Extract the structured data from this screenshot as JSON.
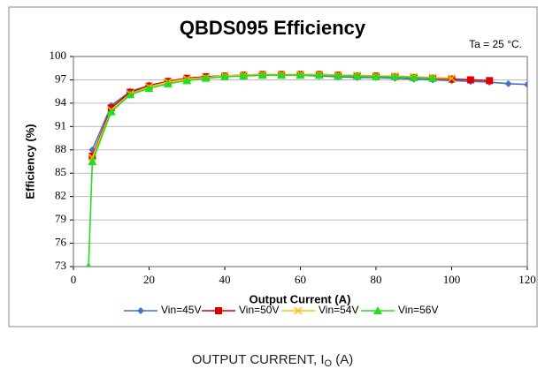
{
  "chart_data": {
    "type": "line",
    "title": "QBDS095 Efficiency",
    "annotation": "Ta = 25 °C.",
    "xlabel": "Output Current (A)",
    "ylabel": "Efficiency (%)",
    "caption": {
      "text": "OUTPUT CURRENT, I",
      "sub": "O",
      "suffix": " (A)"
    },
    "xlim": [
      0,
      120
    ],
    "xticks": [
      0,
      20,
      40,
      60,
      80,
      100,
      120
    ],
    "ylim": [
      73,
      100
    ],
    "yticks": [
      73,
      76,
      79,
      82,
      85,
      88,
      91,
      94,
      97,
      100
    ],
    "grid": true,
    "legend": "bottom",
    "series": [
      {
        "name": "Vin=45V",
        "color": "#4472c4",
        "marker": "diamond",
        "x": [
          5,
          10,
          15,
          20,
          25,
          30,
          35,
          40,
          45,
          50,
          55,
          60,
          65,
          70,
          75,
          80,
          85,
          90,
          95,
          100,
          105,
          110,
          115,
          120
        ],
        "values": [
          88,
          93.7,
          95.5,
          96.3,
          96.8,
          97.2,
          97.4,
          97.5,
          97.6,
          97.6,
          97.6,
          97.6,
          97.5,
          97.4,
          97.3,
          97.3,
          97.2,
          97.1,
          97.0,
          96.9,
          96.8,
          96.7,
          96.5,
          96.4
        ]
      },
      {
        "name": "Vin=50V",
        "color": "#e00000",
        "marker": "square",
        "x": [
          5,
          10,
          15,
          20,
          25,
          30,
          35,
          40,
          45,
          50,
          55,
          60,
          65,
          70,
          75,
          80,
          85,
          90,
          95,
          100,
          105,
          110
        ],
        "values": [
          87.2,
          93.4,
          95.4,
          96.2,
          96.8,
          97.2,
          97.4,
          97.5,
          97.6,
          97.7,
          97.7,
          97.7,
          97.7,
          97.6,
          97.5,
          97.5,
          97.4,
          97.3,
          97.2,
          97.1,
          97.0,
          96.9
        ]
      },
      {
        "name": "Vin=54V",
        "color": "#ffc000",
        "marker": "x",
        "x": [
          5,
          10,
          15,
          20,
          25,
          30,
          35,
          40,
          45,
          50,
          55,
          60,
          65,
          70,
          75,
          80,
          85,
          90,
          95,
          100
        ],
        "values": [
          87,
          93.1,
          95.2,
          96.1,
          96.7,
          97.1,
          97.3,
          97.5,
          97.6,
          97.7,
          97.7,
          97.7,
          97.7,
          97.6,
          97.6,
          97.5,
          97.5,
          97.4,
          97.3,
          97.2
        ]
      },
      {
        "name": "Vin=56V",
        "color": "#22dd22",
        "marker": "triangle",
        "x": [
          4,
          5,
          10,
          15,
          20,
          25,
          30,
          35,
          40,
          45,
          50,
          55,
          60,
          65,
          70,
          75,
          80,
          85,
          90,
          95
        ],
        "values": [
          73,
          86.5,
          92.9,
          95.1,
          95.9,
          96.5,
          96.9,
          97.2,
          97.4,
          97.5,
          97.6,
          97.6,
          97.6,
          97.6,
          97.5,
          97.5,
          97.4,
          97.4,
          97.3,
          97.2
        ]
      }
    ]
  }
}
